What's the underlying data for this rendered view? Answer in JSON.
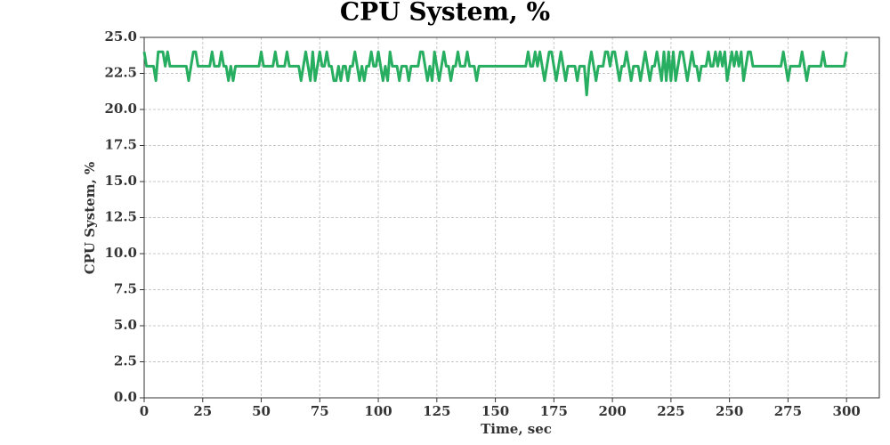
{
  "chart_data": {
    "type": "line",
    "title": "CPU System, %",
    "xlabel": "Time, sec",
    "ylabel": "CPU System, %",
    "x": [
      0,
      1,
      2,
      3,
      4,
      5,
      6,
      7,
      8,
      9,
      10,
      11,
      12,
      13,
      14,
      15,
      16,
      17,
      18,
      19,
      20,
      21,
      22,
      23,
      24,
      25,
      26,
      27,
      28,
      29,
      30,
      31,
      32,
      33,
      34,
      35,
      36,
      37,
      38,
      39,
      40,
      41,
      42,
      43,
      44,
      45,
      46,
      47,
      48,
      49,
      50,
      51,
      52,
      53,
      54,
      55,
      56,
      57,
      58,
      59,
      60,
      61,
      62,
      63,
      64,
      65,
      66,
      67,
      68,
      69,
      70,
      71,
      72,
      73,
      74,
      75,
      76,
      77,
      78,
      79,
      80,
      81,
      82,
      83,
      84,
      85,
      86,
      87,
      88,
      89,
      90,
      91,
      92,
      93,
      94,
      95,
      96,
      97,
      98,
      99,
      100,
      101,
      102,
      103,
      104,
      105,
      106,
      107,
      108,
      109,
      110,
      111,
      112,
      113,
      114,
      115,
      116,
      117,
      118,
      119,
      120,
      121,
      122,
      123,
      124,
      125,
      126,
      127,
      128,
      129,
      130,
      131,
      132,
      133,
      134,
      135,
      136,
      137,
      138,
      139,
      140,
      141,
      142,
      143,
      144,
      145,
      146,
      147,
      148,
      149,
      150,
      151,
      152,
      153,
      154,
      155,
      156,
      157,
      158,
      159,
      160,
      161,
      162,
      163,
      164,
      165,
      166,
      167,
      168,
      169,
      170,
      171,
      172,
      173,
      174,
      175,
      176,
      177,
      178,
      179,
      180,
      181,
      182,
      183,
      184,
      185,
      186,
      187,
      188,
      189,
      190,
      191,
      192,
      193,
      194,
      195,
      196,
      197,
      198,
      199,
      200,
      201,
      202,
      203,
      204,
      205,
      206,
      207,
      208,
      209,
      210,
      211,
      212,
      213,
      214,
      215,
      216,
      217,
      218,
      219,
      220,
      221,
      222,
      223,
      224,
      225,
      226,
      227,
      228,
      229,
      230,
      231,
      232,
      233,
      234,
      235,
      236,
      237,
      238,
      239,
      240,
      241,
      242,
      243,
      244,
      245,
      246,
      247,
      248,
      249,
      250,
      251,
      252,
      253,
      254,
      255,
      256,
      257,
      258,
      259,
      260,
      261,
      262,
      263,
      264,
      265,
      266,
      267,
      268,
      269,
      270,
      271,
      272,
      273,
      274,
      275,
      276,
      277,
      278,
      279,
      280,
      281,
      282,
      283,
      284,
      285,
      286,
      287,
      288,
      289,
      290,
      291,
      292,
      293,
      294,
      295,
      296,
      297,
      298,
      299,
      300
    ],
    "series": [
      {
        "name": "CPU System, %",
        "color": "#27ae60",
        "values": [
          24,
          23,
          23,
          23,
          23,
          22,
          24,
          24,
          24,
          23,
          24,
          23,
          23,
          23,
          23,
          23,
          23,
          23,
          23,
          22,
          23,
          24,
          24,
          23,
          23,
          23,
          23,
          23,
          23,
          24,
          23,
          23,
          23,
          24,
          23,
          23,
          22,
          23,
          22,
          23,
          23,
          23,
          23,
          23,
          23,
          23,
          23,
          23,
          23,
          23,
          24,
          23,
          23,
          23,
          23,
          23,
          24,
          23,
          23,
          23,
          23,
          24,
          23,
          23,
          23,
          23,
          23,
          22,
          23,
          24,
          23,
          22,
          24,
          22,
          23,
          24,
          23,
          23,
          24,
          23,
          23,
          22,
          22,
          23,
          22,
          23,
          23,
          22,
          23,
          23,
          24,
          23,
          22,
          23,
          22,
          23,
          23,
          24,
          23,
          23,
          24,
          23,
          22,
          23,
          22,
          24,
          23,
          23,
          23,
          22,
          23,
          23,
          23,
          22,
          23,
          23,
          23,
          23,
          24,
          24,
          23,
          22,
          23,
          22,
          24,
          23,
          22,
          23,
          24,
          23,
          23,
          22,
          23,
          23,
          24,
          23,
          23,
          23,
          24,
          23,
          23,
          23,
          22,
          23,
          23,
          23,
          23,
          23,
          23,
          23,
          23,
          23,
          23,
          23,
          23,
          23,
          23,
          23,
          23,
          23,
          23,
          23,
          23,
          23,
          24,
          23,
          23,
          24,
          23,
          24,
          23,
          22,
          23,
          24,
          24,
          23,
          22,
          23,
          24,
          23,
          22,
          23,
          23,
          23,
          23,
          22,
          23,
          23,
          23,
          21,
          23,
          24,
          23,
          22,
          23,
          23,
          23,
          24,
          24,
          23,
          24,
          24,
          23,
          22,
          23,
          23,
          24,
          23,
          22,
          23,
          23,
          23,
          22,
          23,
          24,
          23,
          22,
          23,
          23,
          24,
          23,
          22,
          24,
          22,
          24,
          22,
          24,
          22,
          23,
          24,
          24,
          23,
          22,
          23,
          24,
          23,
          23,
          22,
          23,
          23,
          23,
          24,
          23,
          23,
          24,
          23,
          24,
          23,
          24,
          22,
          23,
          24,
          23,
          24,
          23,
          24,
          22,
          23,
          24,
          24,
          23,
          23,
          23,
          23,
          23,
          23,
          23,
          23,
          23,
          23,
          23,
          23,
          23,
          24,
          23,
          22,
          23,
          23,
          23,
          23,
          23,
          24,
          23,
          22,
          23,
          23,
          23,
          23,
          23,
          23,
          24,
          23,
          23,
          23,
          23,
          23,
          23,
          23,
          23,
          23,
          24
        ]
      }
    ],
    "xlim": [
      0,
      314
    ],
    "ylim": [
      0,
      25
    ],
    "xticks": [
      0,
      25,
      50,
      75,
      100,
      125,
      150,
      175,
      200,
      225,
      250,
      275,
      300
    ],
    "yticks": [
      {
        "value": 0,
        "label": "0.0"
      },
      2.5,
      {
        "value": 5,
        "label": "5.0"
      },
      7.5,
      {
        "value": 10,
        "label": "10.0"
      },
      12.5,
      {
        "value": 15,
        "label": "15.0"
      },
      17.5,
      {
        "value": 20,
        "label": "20.0"
      },
      22.5,
      {
        "value": 25,
        "label": "25.0"
      }
    ],
    "grid": true
  }
}
